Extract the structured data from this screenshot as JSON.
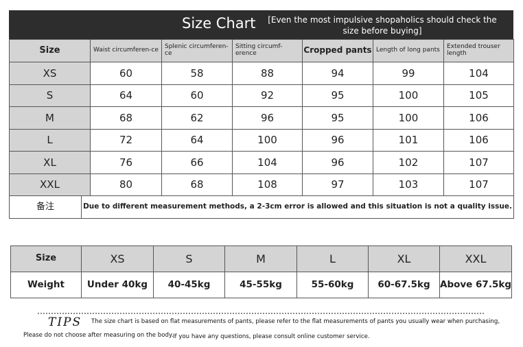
{
  "title": "Size Chart",
  "subtitle": "[Even the most impulsive shopaholics should check the size before buying]",
  "size_table": {
    "header": [
      "Size",
      "Waist circumferen-ce",
      "Splenic circumferen-ce",
      "Sitting circumf-erence",
      "Cropped pants",
      "Length of long pants",
      "Extended trouser length"
    ],
    "rows": [
      [
        "XS",
        60,
        58,
        88,
        94,
        99,
        104
      ],
      [
        "S",
        64,
        60,
        92,
        95,
        100,
        105
      ],
      [
        "M",
        68,
        62,
        96,
        95,
        100,
        106
      ],
      [
        "L",
        72,
        64,
        100,
        96,
        101,
        106
      ],
      [
        "XL",
        76,
        66,
        104,
        96,
        102,
        107
      ],
      [
        "XXL",
        80,
        68,
        108,
        97,
        103,
        107
      ]
    ],
    "note_label": "备注",
    "note": "Due to different measurement methods, a 2-3cm error is allowed and this situation is not a quality issue."
  },
  "weight_table": {
    "header": [
      "Size",
      "XS",
      "S",
      "M",
      "L",
      "XL",
      "XXL"
    ],
    "row": [
      "Weight",
      "Under 40kg",
      "40-45kg",
      "45-55kg",
      "55-60kg",
      "60-67.5kg",
      "Above 67.5kg"
    ]
  },
  "tips": {
    "label": "TIPS",
    "line1": "The size chart is based on flat measurements of pants, please refer to the flat measurements of pants you usually wear when purchasing,",
    "line2a": "Please do not choose after measuring on the body.",
    "line2b": "If you have any questions, please consult online customer service."
  }
}
